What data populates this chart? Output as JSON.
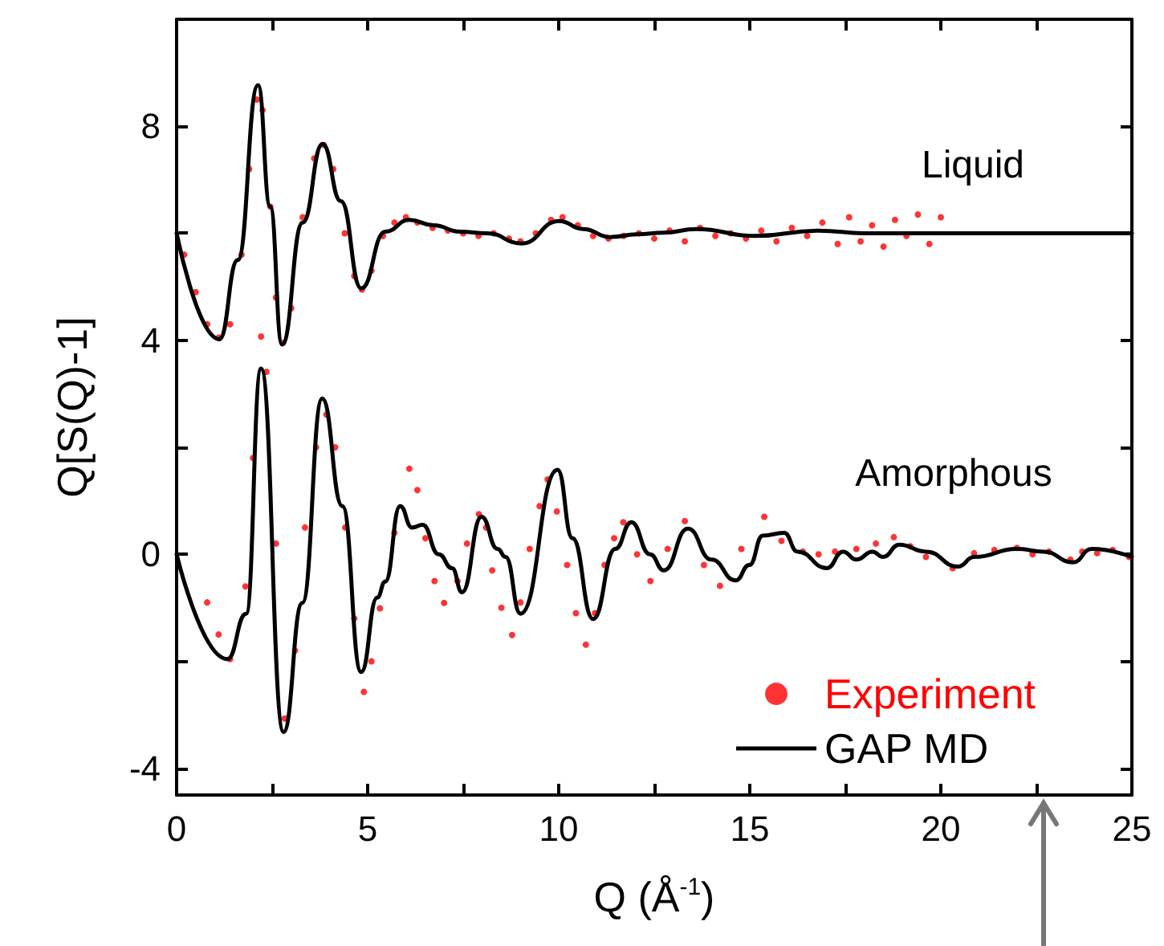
{
  "chart_data": {
    "type": "line",
    "xlabel": "Q (Å$^{-1}$)",
    "ylabel": "Q[S(Q)-1]",
    "xlim": [
      0,
      25
    ],
    "xticks": [
      0,
      {
        "value": 2.5,
        "label": null
      },
      5,
      {
        "value": 7.5,
        "label": null
      },
      10,
      {
        "value": 12.5,
        "label": null
      },
      15,
      {
        "value": 17.5,
        "label": null
      },
      20,
      {
        "value": 22.5,
        "label": null
      },
      25
    ],
    "ylim": [
      -4.5,
      10
    ],
    "yticks": [
      -4,
      {
        "value": -2,
        "label": null
      },
      0,
      {
        "value": 2,
        "label": null
      },
      4,
      {
        "value": 6,
        "label": null
      },
      8
    ],
    "grid": false,
    "legend": "bottom right",
    "annotations": [
      "Liquid",
      "Amorphous"
    ],
    "series": [
      {
        "name": "Experiment",
        "type": "scatter",
        "marker": "circle",
        "color": "#ff0000",
        "x": [
          0.2,
          0.5,
          0.8,
          1.1,
          1.4,
          1.7,
          1.9,
          2.1,
          2.25,
          2.45,
          2.6,
          2.78,
          3.0,
          3.3,
          3.6,
          3.85,
          4.1,
          4.4,
          4.65,
          4.85,
          5.1,
          5.4,
          5.7,
          6.0,
          6.3,
          6.7,
          7.1,
          7.5,
          7.9,
          8.3,
          8.7,
          9.0,
          9.4,
          9.8,
          10.1,
          10.5,
          10.9,
          11.3,
          11.7,
          12.1,
          12.5,
          12.9,
          13.3,
          13.7,
          14.1,
          14.5,
          14.9,
          15.3,
          15.7,
          16.1,
          16.5,
          16.9,
          17.3,
          17.6,
          17.9,
          18.2,
          18.5,
          18.8,
          19.1,
          19.4,
          19.7,
          20.0
        ],
        "values": [
          5.6,
          4.9,
          4.3,
          4.05,
          4.3,
          5.6,
          7.2,
          8.5,
          8.3,
          6.5,
          4.8,
          3.95,
          4.6,
          6.3,
          7.4,
          7.65,
          7.2,
          6.0,
          5.2,
          4.95,
          5.3,
          5.95,
          6.2,
          6.3,
          6.2,
          6.1,
          6.05,
          6.0,
          5.95,
          6.0,
          5.9,
          5.85,
          6.0,
          6.25,
          6.3,
          6.15,
          5.95,
          5.9,
          5.95,
          6.0,
          5.9,
          6.05,
          5.85,
          6.1,
          5.95,
          6.0,
          5.9,
          6.05,
          5.85,
          6.1,
          5.95,
          6.2,
          5.8,
          6.3,
          5.85,
          6.15,
          5.75,
          6.25,
          5.95,
          6.35,
          5.8,
          6.3
        ]
      },
      {
        "name": "GAP MD",
        "marker": "none",
        "line_style": "solid",
        "color": "#000000",
        "x": [
          0,
          1.12,
          1.6,
          2.13,
          2.45,
          2.76,
          3.3,
          3.82,
          4.3,
          4.83,
          5.46,
          6.09,
          6.72,
          7.42,
          8.12,
          9.03,
          10.01,
          10.64,
          11.34,
          12.05,
          12.74,
          13.6,
          15.13,
          16.8,
          18,
          25
        ],
        "values": [
          6.0,
          4.02,
          5.5,
          8.77,
          6.5,
          3.92,
          6.2,
          7.67,
          6.6,
          4.97,
          6.03,
          6.25,
          6.15,
          6.03,
          6.0,
          5.81,
          6.23,
          6.08,
          5.93,
          5.98,
          6.01,
          6.08,
          5.95,
          6.05,
          6.0,
          6.0
        ]
      },
      {
        "type": "scatter",
        "marker": "circle",
        "color": "#ff0000",
        "x": [
          0.8,
          1.1,
          1.4,
          1.8,
          2.0,
          2.21,
          2.35,
          2.6,
          2.83,
          3.1,
          3.36,
          3.65,
          3.92,
          4.15,
          4.41,
          4.65,
          4.9,
          5.1,
          5.32,
          5.7,
          6.09,
          6.3,
          6.51,
          6.75,
          7.0,
          7.35,
          7.6,
          7.91,
          8.1,
          8.26,
          8.5,
          8.78,
          9.0,
          9.24,
          9.5,
          9.71,
          9.95,
          10.22,
          10.45,
          10.71,
          10.95,
          11.2,
          11.45,
          11.69,
          12.05,
          12.4,
          12.85,
          13.3,
          13.8,
          14.22,
          14.78,
          15.38,
          15.83,
          16.39,
          16.8,
          17.23,
          17.79,
          18.3,
          18.77,
          19.2,
          19.61,
          20.31,
          20.87,
          21.4,
          21.99,
          22.4,
          22.83,
          23.39,
          23.7,
          24.09,
          24.5,
          24.93
        ],
        "values": [
          -0.9,
          -1.5,
          -1.96,
          -0.6,
          1.8,
          4.07,
          3.41,
          0.2,
          -3.07,
          -1.8,
          0.5,
          2.0,
          2.61,
          2.0,
          0.5,
          -1.2,
          -2.57,
          -2.0,
          -1.01,
          0.4,
          1.6,
          1.2,
          0.3,
          -0.5,
          -0.91,
          -0.5,
          0.2,
          0.75,
          0.5,
          -0.3,
          -1.0,
          -1.51,
          -0.9,
          0.1,
          0.9,
          1.4,
          0.8,
          -0.2,
          -1.1,
          -1.69,
          -1.1,
          -0.2,
          0.3,
          0.6,
          0.0,
          -0.5,
          0.1,
          0.62,
          -0.2,
          -0.59,
          0.1,
          0.7,
          0.25,
          0.05,
          0.0,
          0.05,
          0.1,
          0.2,
          0.32,
          0.15,
          -0.05,
          -0.26,
          0.02,
          0.08,
          0.12,
          0.0,
          0.05,
          -0.1,
          0.05,
          0.02,
          0.08,
          -0.05
        ]
      },
      {
        "marker": "none",
        "line_style": "solid",
        "color": "#000000",
        "x": [
          0,
          1.33,
          1.82,
          2.21,
          2.8,
          3.29,
          3.81,
          4.34,
          4.83,
          5.25,
          5.46,
          5.85,
          6.16,
          6.44,
          6.86,
          7.21,
          7.47,
          7.98,
          8.4,
          8.61,
          9.0,
          9.97,
          10.36,
          10.9,
          11.48,
          11.9,
          12.39,
          12.75,
          13.38,
          14.0,
          14.63,
          14.99,
          15.34,
          15.9,
          16.25,
          17.02,
          17.44,
          17.79,
          18.21,
          18.49,
          18.91,
          19.61,
          20.45,
          20.87,
          21.99,
          22.69,
          23.46,
          23.95,
          25
        ],
        "values": [
          0,
          -1.96,
          -1.11,
          3.47,
          -3.32,
          -0.91,
          2.91,
          0.9,
          -2.2,
          -0.81,
          -0.51,
          0.9,
          0.5,
          0.55,
          0,
          -0.26,
          -0.71,
          0.7,
          0.1,
          -0.05,
          -1.11,
          1.58,
          0.3,
          -1.21,
          0.1,
          0.6,
          0,
          -0.3,
          0.48,
          -0.1,
          -0.49,
          -0.2,
          0.35,
          0.4,
          0.05,
          -0.26,
          0.05,
          -0.1,
          0.05,
          -0.05,
          0.18,
          0.05,
          -0.23,
          -0.05,
          0.1,
          0.05,
          -0.15,
          0.1,
          -0.05
        ]
      }
    ]
  }
}
